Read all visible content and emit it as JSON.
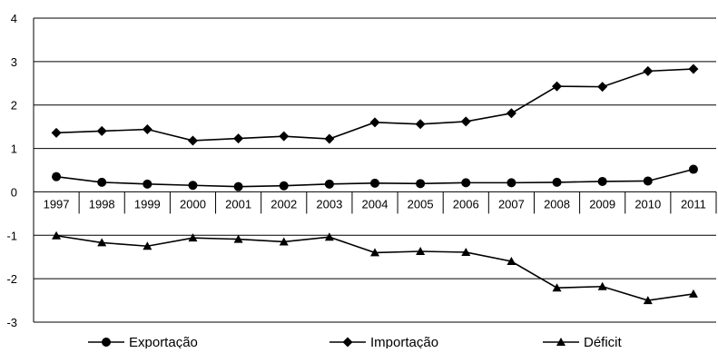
{
  "chart_data": {
    "type": "line",
    "title": "",
    "xlabel": "",
    "ylabel": "",
    "categories": [
      "1997",
      "1998",
      "1999",
      "2000",
      "2001",
      "2002",
      "2003",
      "2004",
      "2005",
      "2006",
      "2007",
      "2008",
      "2009",
      "2010",
      "2011"
    ],
    "ylim": [
      -3,
      4
    ],
    "yticks": [
      "-3",
      "-2",
      "-1",
      "0",
      "1",
      "2",
      "3",
      "4"
    ],
    "grid": true,
    "legend_position": "bottom",
    "series": [
      {
        "name": "Exportação",
        "marker": "circle",
        "values": [
          0.35,
          0.22,
          0.18,
          0.15,
          0.12,
          0.14,
          0.18,
          0.2,
          0.19,
          0.21,
          0.21,
          0.22,
          0.24,
          0.25,
          0.52
        ]
      },
      {
        "name": "Importação",
        "marker": "diamond",
        "values": [
          1.36,
          1.4,
          1.44,
          1.18,
          1.23,
          1.28,
          1.22,
          1.6,
          1.56,
          1.62,
          1.81,
          2.43,
          2.42,
          2.78,
          2.83
        ]
      },
      {
        "name": "Déficit",
        "marker": "triangle",
        "values": [
          -1.01,
          -1.17,
          -1.25,
          -1.06,
          -1.09,
          -1.15,
          -1.04,
          -1.4,
          -1.37,
          -1.39,
          -1.6,
          -2.21,
          -2.18,
          -2.5,
          -2.35
        ]
      }
    ]
  }
}
